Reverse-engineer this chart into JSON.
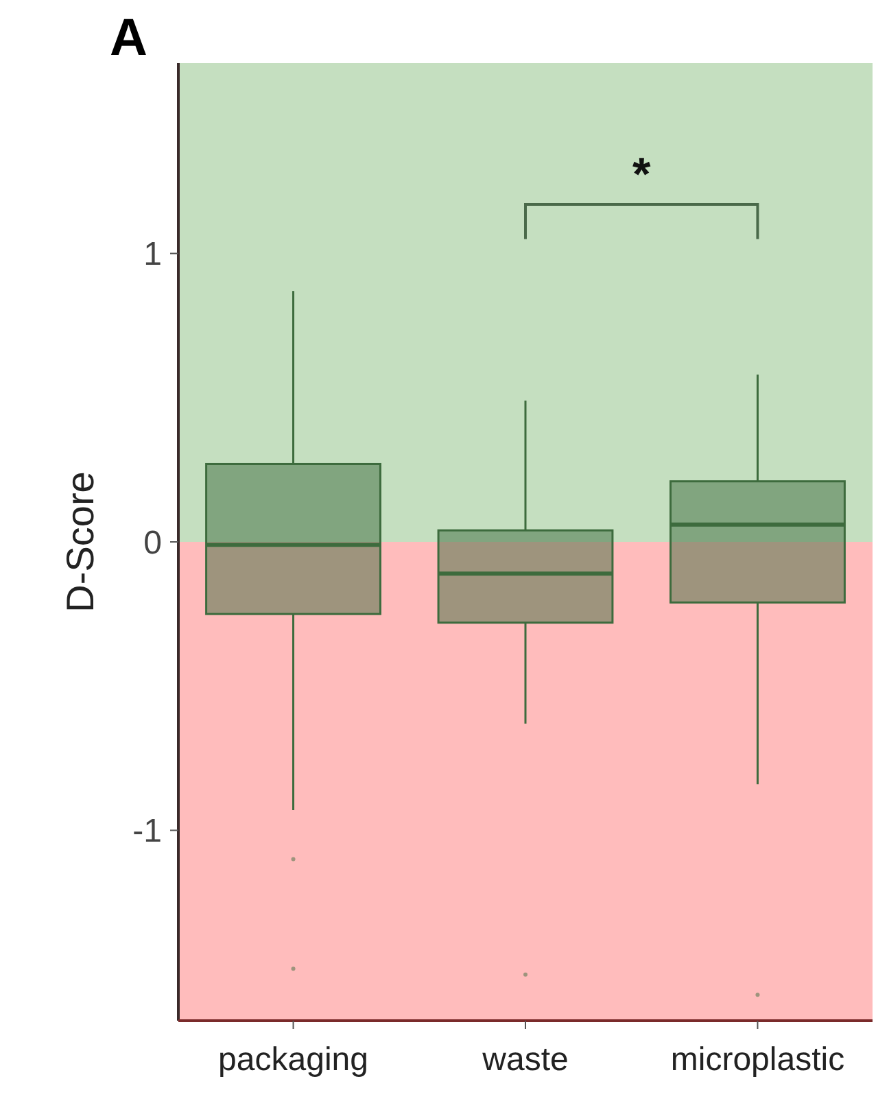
{
  "chart_data": {
    "type": "box",
    "title": "A",
    "ylabel": "D-Score",
    "categories": [
      "packaging",
      "waste",
      "microplastic"
    ],
    "series": [
      {
        "color": "#3d6b3d",
        "boxes": [
          {
            "low": -0.93,
            "q1": -0.25,
            "median": -0.01,
            "q3": 0.27,
            "high": 0.87,
            "outliers": [
              -1.1,
              -1.48
            ]
          },
          {
            "low": -0.63,
            "q1": -0.28,
            "median": -0.11,
            "q3": 0.04,
            "high": 0.49,
            "outliers": [
              -1.5
            ]
          },
          {
            "low": -0.84,
            "q1": -0.21,
            "median": 0.06,
            "q3": 0.21,
            "high": 0.58,
            "outliers": [
              -1.57
            ]
          }
        ]
      }
    ],
    "ylim": [
      -1.66,
      1.66
    ],
    "yticks": [
      -1,
      0,
      1
    ],
    "grid": false,
    "bands": [
      {
        "axis": "y",
        "from": 0,
        "to": 1.66,
        "color": "#c5dfc0"
      },
      {
        "axis": "y",
        "from": -1.66,
        "to": 0,
        "color": "#ffbcbc"
      }
    ],
    "annotations": [
      "*"
    ]
  }
}
